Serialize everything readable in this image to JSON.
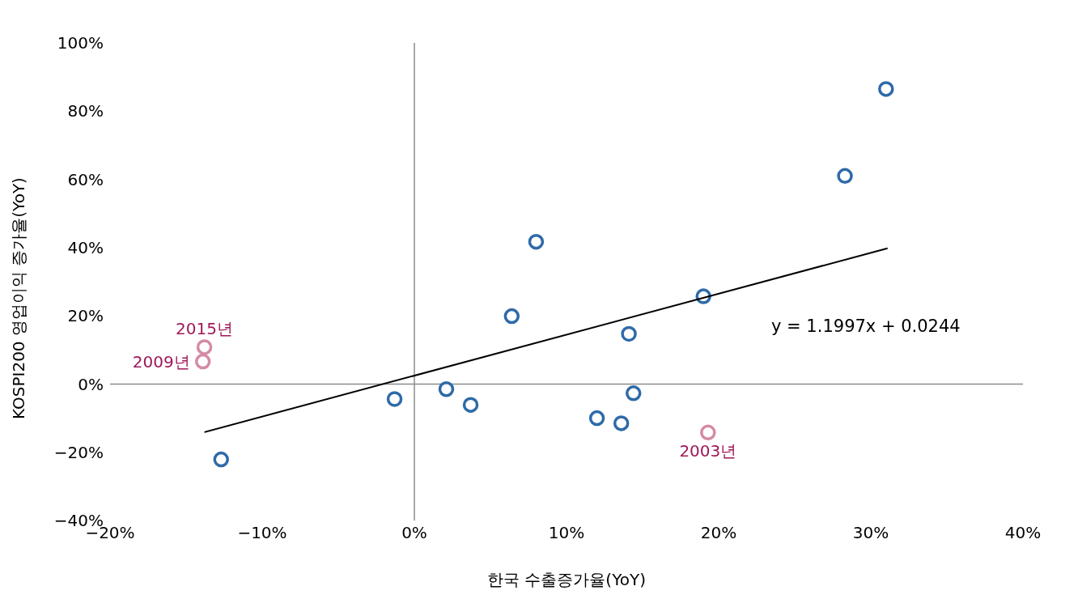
{
  "chart_data": {
    "type": "scatter",
    "xlabel": "한국 수출증가율(YoY)",
    "ylabel": "KOSPI200 영업이익 증가율(YoY)",
    "xlim": [
      -20,
      40
    ],
    "ylim": [
      -40,
      100
    ],
    "xticks": [
      {
        "value": -20,
        "label": "−20%"
      },
      {
        "value": -10,
        "label": "−10%"
      },
      {
        "value": 0,
        "label": "0%"
      },
      {
        "value": 10,
        "label": "10%"
      },
      {
        "value": 20,
        "label": "20%"
      },
      {
        "value": 30,
        "label": "30%"
      },
      {
        "value": 40,
        "label": "40%"
      }
    ],
    "yticks": [
      {
        "value": -40,
        "label": "−40%"
      },
      {
        "value": -20,
        "label": "−20%"
      },
      {
        "value": 0,
        "label": "0%"
      },
      {
        "value": 20,
        "label": "20%"
      },
      {
        "value": 40,
        "label": "40%"
      },
      {
        "value": 60,
        "label": "60%"
      },
      {
        "value": 80,
        "label": "80%"
      },
      {
        "value": 100,
        "label": "100%"
      }
    ],
    "legend": false,
    "marker": "circle",
    "series": [
      {
        "color": "#2e6aa8",
        "x": [
          -12.7,
          -1.3,
          2.1,
          3.7,
          6.4,
          8.0,
          12.0,
          13.6,
          14.1,
          14.4,
          19.0,
          28.3,
          31.0
        ],
        "values": [
          -22.1,
          -4.4,
          -1.5,
          -6.1,
          19.9,
          41.7,
          -10.0,
          -11.5,
          14.7,
          -2.7,
          25.7,
          61.0,
          86.5
        ]
      },
      {
        "color": "#d48aa6",
        "x": [
          -13.8,
          -13.9,
          19.3
        ],
        "values": [
          10.8,
          6.6,
          -14.2
        ]
      },
      {
        "type": "line",
        "color": "#000000",
        "marker": "none",
        "x": [
          -13.8,
          31.1
        ],
        "values": [
          -14.1,
          39.8
        ]
      }
    ],
    "annotations": [
      {
        "text": "2015년",
        "x": -13.8,
        "y": 10.8
      },
      {
        "text": "2009년",
        "x": -13.9,
        "y": 6.6
      },
      {
        "text": "2003년",
        "x": 19.3,
        "y": -14.2
      },
      "y = 1.1997x + 0.0244"
    ]
  }
}
